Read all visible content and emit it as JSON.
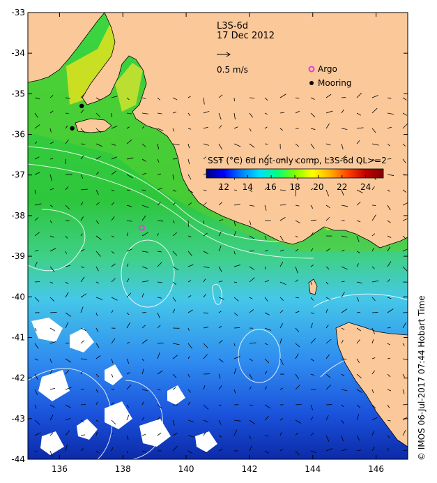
{
  "title": "L3S-6d",
  "date": "17 Dec 2012",
  "vector_scale": {
    "label": "0.5 m/s"
  },
  "legend": {
    "argo_label": "Argo",
    "mooring_label": "Mooring",
    "argo_color": "#e040e0",
    "mooring_color": "#000000"
  },
  "colorbar": {
    "title": "SST (°C) 6d ngt-only comp, L3S-6d QL>=2",
    "ticks": [
      "12",
      "14",
      "16",
      "18",
      "20",
      "22",
      "24"
    ],
    "tick_values": [
      12,
      14,
      16,
      18,
      20,
      22,
      24
    ],
    "range": [
      10.5,
      25.5
    ],
    "colors": [
      "#000080",
      "#0000ff",
      "#0080ff",
      "#00e0ff",
      "#00ff80",
      "#80ff00",
      "#ffff00",
      "#ffb000",
      "#ff4000",
      "#c00000",
      "#800000"
    ]
  },
  "axes": {
    "lon_range": [
      135,
      147
    ],
    "lat_range": [
      -44,
      -33
    ],
    "x_ticks": [
      "136",
      "138",
      "140",
      "142",
      "144",
      "146"
    ],
    "x_values": [
      136,
      138,
      140,
      142,
      144,
      146
    ],
    "y_ticks": [
      "-33",
      "-34",
      "-35",
      "-36",
      "-37",
      "-38",
      "-39",
      "-40",
      "-41",
      "-42",
      "-43",
      "-44"
    ],
    "y_values": [
      -33,
      -34,
      -35,
      -36,
      -37,
      -38,
      -39,
      -40,
      -41,
      -42,
      -43,
      -44
    ]
  },
  "markers": {
    "argo": [
      {
        "lon": 138.6,
        "lat": -38.3
      }
    ],
    "moorings": [
      {
        "lon": 136.7,
        "lat": -35.3
      },
      {
        "lon": 136.4,
        "lat": -35.85
      }
    ]
  },
  "credit": "©  IMOS 06-Jul-2017 07:44 Hobart Time",
  "colors": {
    "land": "#fbc89a",
    "ocean_warm": "#2ccf3c",
    "ocean_mid": "#49c6f0",
    "ocean_cold": "#1040d8",
    "gulf": "#e8d820"
  }
}
